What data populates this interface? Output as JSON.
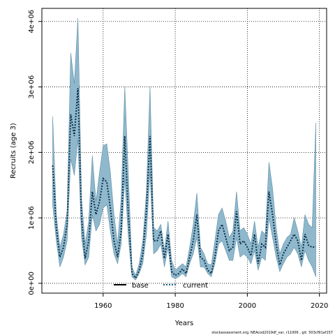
{
  "chart_data": {
    "type": "line",
    "title": "",
    "xlabel": "Years",
    "ylabel": "Recruits (age 3)",
    "xlim": [
      1943,
      2022
    ],
    "ylim": [
      -150000,
      4200000
    ],
    "x_ticks": [
      1960,
      1980,
      2000,
      2020
    ],
    "y_ticks": [
      {
        "value": 0,
        "label": "0e+00"
      },
      {
        "value": 1000000,
        "label": "1e+06"
      },
      {
        "value": 2000000,
        "label": "2e+06"
      },
      {
        "value": 3000000,
        "label": "3e+06"
      },
      {
        "value": 4000000,
        "label": "4e+06"
      }
    ],
    "grid": true,
    "legend": {
      "placement": "bottom-center",
      "entries": [
        {
          "label": "base",
          "style": "solid",
          "color": "#000000"
        },
        {
          "label": "current",
          "style": "dotted",
          "color": "#1f5f8b"
        }
      ]
    },
    "band_color": "#8fb8cc",
    "band_edge_color": "#5f8ea6",
    "years": [
      1946,
      1947,
      1948,
      1949,
      1950,
      1951,
      1952,
      1953,
      1954,
      1955,
      1956,
      1957,
      1958,
      1959,
      1960,
      1961,
      1962,
      1963,
      1964,
      1965,
      1966,
      1967,
      1968,
      1969,
      1970,
      1971,
      1972,
      1973,
      1974,
      1975,
      1976,
      1977,
      1978,
      1979,
      1980,
      1981,
      1982,
      1983,
      1984,
      1985,
      1986,
      1987,
      1988,
      1989,
      1990,
      1991,
      1992,
      1993,
      1994,
      1995,
      1996,
      1997,
      1998,
      1999,
      2000,
      2001,
      2002,
      2003,
      2004,
      2005,
      2006,
      2007,
      2008,
      2009,
      2010,
      2011,
      2012,
      2013,
      2014,
      2015,
      2016,
      2017,
      2018,
      2019
    ],
    "series": [
      {
        "name": "current",
        "values": [
          1800000,
          850000,
          400000,
          550000,
          900000,
          2580000,
          2250000,
          2980000,
          1000000,
          380000,
          650000,
          1400000,
          1050000,
          1250000,
          1600000,
          1550000,
          1150000,
          650000,
          400000,
          800000,
          2250000,
          1050000,
          150000,
          80000,
          200000,
          450000,
          1100000,
          2250000,
          650000,
          650000,
          800000,
          380000,
          750000,
          180000,
          120000,
          150000,
          220000,
          150000,
          400000,
          650000,
          1050000,
          400000,
          350000,
          200000,
          150000,
          400000,
          800000,
          900000,
          700000,
          500000,
          550000,
          1100000,
          600000,
          650000,
          550000,
          420000,
          750000,
          300000,
          600000,
          550000,
          1400000,
          1050000,
          600000,
          280000,
          450000,
          550000,
          650000,
          750000,
          650000,
          350000,
          750000,
          580000,
          550000,
          560000
        ]
      },
      {
        "name": "upper",
        "values": [
          2550000,
          1050000,
          550000,
          750000,
          1100000,
          3520000,
          3050000,
          4050000,
          1300000,
          600000,
          950000,
          1950000,
          1250000,
          1700000,
          2100000,
          2130000,
          1700000,
          1050000,
          600000,
          1300000,
          3000000,
          1650000,
          250000,
          120000,
          300000,
          650000,
          1400000,
          3000000,
          850000,
          800000,
          900000,
          500000,
          950000,
          350000,
          200000,
          250000,
          300000,
          250000,
          550000,
          900000,
          1380000,
          550000,
          450000,
          300000,
          280000,
          650000,
          1050000,
          1150000,
          950000,
          700000,
          800000,
          1400000,
          800000,
          850000,
          750000,
          600000,
          950000,
          550000,
          800000,
          750000,
          1850000,
          1450000,
          850000,
          450000,
          600000,
          700000,
          750000,
          1000000,
          800000,
          550000,
          1050000,
          900000,
          850000,
          2450000
        ]
      },
      {
        "name": "lower",
        "values": [
          1200000,
          650000,
          250000,
          400000,
          650000,
          1900000,
          1650000,
          2200000,
          700000,
          280000,
          400000,
          1050000,
          800000,
          900000,
          1150000,
          1200000,
          800000,
          450000,
          300000,
          600000,
          1600000,
          700000,
          100000,
          50000,
          150000,
          300000,
          750000,
          1700000,
          450000,
          500000,
          600000,
          250000,
          550000,
          100000,
          70000,
          100000,
          150000,
          100000,
          300000,
          450000,
          700000,
          250000,
          250000,
          150000,
          100000,
          300000,
          600000,
          650000,
          500000,
          350000,
          350000,
          700000,
          400000,
          450000,
          400000,
          300000,
          500000,
          200000,
          400000,
          350000,
          1000000,
          700000,
          400000,
          180000,
          300000,
          400000,
          450000,
          550000,
          450000,
          250000,
          500000,
          350000,
          250000,
          100000
        ]
      }
    ],
    "credit": "stockassessment.org, NEAcod2019df_var, r11006 , git: 503cf91af157"
  }
}
